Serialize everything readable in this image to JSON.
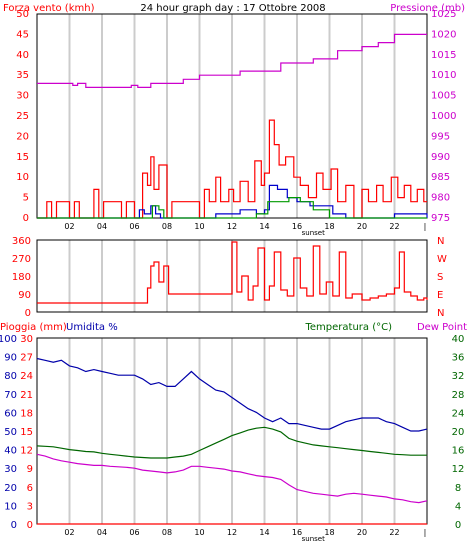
{
  "colors": {
    "wind": "#ff0000",
    "pressure": "#cc00cc",
    "direction": "#ff0000",
    "rain": "#ff0000",
    "humidity": "#0000aa",
    "temperature": "#006600",
    "dewpoint": "#cc00cc",
    "windavg": "#0000cc",
    "windgreen": "#009900",
    "grid": "#cccccc",
    "axis": "#000000"
  },
  "chart_data": [
    {
      "type": "line",
      "title": "24 hour graph day : 17 Ottobre 2008",
      "left_label": "Forza vento (kmh)",
      "right_label": "Pressione (mb)",
      "left_ticks": [
        "0",
        "5",
        "10",
        "15",
        "20",
        "25",
        "30",
        "35",
        "40",
        "45",
        "50"
      ],
      "right_ticks": [
        "975",
        "980",
        "985",
        "990",
        "995",
        "1000",
        "1005",
        "1010",
        "1015",
        "1020",
        "1025"
      ],
      "x_ticks": [
        "02",
        "04",
        "06",
        "08",
        "10",
        "12",
        "14",
        "16",
        "18",
        "20",
        "22"
      ],
      "x_extra_label": "sunset",
      "ylim_left": [
        0,
        50
      ],
      "ylim_right": [
        975,
        1025
      ],
      "xlim": [
        0,
        24
      ],
      "grid": true,
      "series": [
        {
          "name": "Pressione (mb)",
          "axis": "right",
          "type": "step",
          "x": [
            0,
            2.2,
            2.5,
            3.0,
            5.8,
            6.2,
            7.0,
            9.0,
            10.0,
            12.5,
            15.0,
            17.0,
            18.5,
            20.0,
            21.0,
            22.0,
            24.0
          ],
          "y": [
            1008,
            1007.5,
            1008,
            1007,
            1007.5,
            1007,
            1008,
            1009,
            1010,
            1011,
            1013,
            1014,
            1016,
            1017,
            1018,
            1020,
            1020
          ]
        },
        {
          "name": "wind-gust",
          "axis": "left",
          "type": "step",
          "x": [
            0,
            0.3,
            0.6,
            0.9,
            1.2,
            2.0,
            2.3,
            2.6,
            3.5,
            3.8,
            4.1,
            5.2,
            5.5,
            6.0,
            6.5,
            6.8,
            7.0,
            7.2,
            7.5,
            8.0,
            8.3,
            10.0,
            10.3,
            10.6,
            11.0,
            11.3,
            11.8,
            12.1,
            12.5,
            13.0,
            13.4,
            13.8,
            14.0,
            14.3,
            14.6,
            14.9,
            15.3,
            15.8,
            16.2,
            16.7,
            17.2,
            17.6,
            18.1,
            18.5,
            19.0,
            19.5,
            20.0,
            20.4,
            20.9,
            21.3,
            21.8,
            22.2,
            22.6,
            23.0,
            23.4,
            23.8,
            24.0
          ],
          "y": [
            0,
            0,
            4,
            0,
            4,
            0,
            4,
            0,
            7,
            0,
            4,
            0,
            4,
            0,
            11,
            8,
            15,
            7,
            13,
            0,
            4,
            0,
            7,
            4,
            10,
            4,
            7,
            4,
            9,
            4,
            14,
            8,
            11,
            24,
            18,
            13,
            15,
            10,
            8,
            5,
            11,
            7,
            12,
            4,
            8,
            0,
            7,
            4,
            8,
            4,
            10,
            5,
            8,
            4,
            7,
            4,
            4
          ]
        },
        {
          "name": "wind-avg",
          "axis": "left",
          "type": "step",
          "x": [
            0,
            6.0,
            6.3,
            6.6,
            7.0,
            7.3,
            7.6,
            10.5,
            11.0,
            12.0,
            12.5,
            13.5,
            14.0,
            14.3,
            14.8,
            15.4,
            16.0,
            16.8,
            17.5,
            18.2,
            19.0,
            21.0,
            22.0,
            24.0
          ],
          "y": [
            0,
            0,
            2,
            1,
            3,
            1,
            0,
            0,
            1,
            1,
            2,
            1,
            2,
            8,
            7,
            5,
            4,
            3,
            3,
            1,
            0,
            0,
            1,
            0
          ]
        },
        {
          "name": "wind-green",
          "axis": "left",
          "type": "step",
          "x": [
            0,
            6.8,
            7.1,
            7.5,
            7.8,
            13.0,
            13.5,
            14.2,
            15.5,
            16.2,
            17.0,
            18.0,
            24.0
          ],
          "y": [
            0,
            0,
            3,
            2,
            0,
            0,
            1,
            4,
            5,
            4,
            2,
            0,
            0
          ]
        }
      ]
    },
    {
      "type": "line",
      "left_ticks": [
        "0",
        "90",
        "180",
        "270",
        "360"
      ],
      "right_ticks": [
        "N",
        "E",
        "S",
        "W",
        "N"
      ],
      "ylim": [
        0,
        360
      ],
      "xlim": [
        0,
        24
      ],
      "series": [
        {
          "name": "direction",
          "type": "step",
          "x": [
            0,
            6.5,
            6.8,
            7.0,
            7.2,
            7.5,
            7.8,
            8.1,
            8.5,
            11.8,
            12.0,
            12.3,
            12.6,
            13.0,
            13.3,
            13.6,
            14.0,
            14.3,
            14.6,
            15.0,
            15.4,
            15.8,
            16.2,
            16.6,
            17.0,
            17.4,
            17.8,
            18.2,
            18.6,
            19.0,
            19.4,
            20.0,
            20.5,
            21.0,
            21.5,
            22.0,
            22.3,
            22.6,
            23.0,
            23.4,
            23.8,
            24.0
          ],
          "y": [
            45,
            45,
            120,
            230,
            250,
            150,
            230,
            90,
            90,
            90,
            350,
            100,
            180,
            60,
            130,
            320,
            60,
            130,
            300,
            110,
            80,
            270,
            120,
            80,
            330,
            90,
            150,
            80,
            300,
            70,
            90,
            60,
            70,
            80,
            90,
            120,
            300,
            100,
            80,
            60,
            70,
            60
          ]
        }
      ]
    },
    {
      "type": "line",
      "left_label_1": "Pioggia (mm)",
      "left_label_2": "Umidita %",
      "right_label_1": "Temperatura (°C)",
      "right_label_2": "Dew Point",
      "rain_ticks": [
        "0",
        "3",
        "6",
        "9",
        "12",
        "15",
        "18",
        "21",
        "24",
        "27",
        "30"
      ],
      "humidity_ticks": [
        "0",
        "10",
        "20",
        "30",
        "40",
        "50",
        "60",
        "70",
        "80",
        "90",
        "100"
      ],
      "temp_ticks": [
        "0",
        "4",
        "8",
        "12",
        "16",
        "20",
        "24",
        "28",
        "32",
        "36",
        "40"
      ],
      "ylim_humidity": [
        0,
        100
      ],
      "ylim_temp": [
        0,
        40
      ],
      "xlim": [
        0,
        24
      ],
      "x_ticks": [
        "02",
        "04",
        "06",
        "08",
        "10",
        "12",
        "14",
        "16",
        "18",
        "20",
        "22"
      ],
      "x_extra_label": "sunset",
      "series": [
        {
          "name": "Umidita %",
          "axis": "humidity",
          "x": [
            0,
            0.5,
            1.0,
            1.5,
            2.0,
            2.5,
            3.0,
            3.5,
            4.0,
            4.5,
            5.0,
            5.5,
            6.0,
            6.5,
            7.0,
            7.5,
            8.0,
            8.5,
            9.0,
            9.5,
            10.0,
            10.5,
            11.0,
            11.5,
            12.0,
            12.5,
            13.0,
            13.5,
            14.0,
            14.5,
            15.0,
            15.5,
            16.0,
            16.5,
            17.0,
            17.5,
            18.0,
            18.5,
            19.0,
            19.5,
            20.0,
            20.5,
            21.0,
            21.5,
            22.0,
            22.5,
            23.0,
            23.5,
            24.0
          ],
          "y": [
            89,
            88,
            87,
            88,
            85,
            84,
            82,
            83,
            82,
            81,
            80,
            80,
            80,
            78,
            75,
            76,
            74,
            74,
            78,
            82,
            78,
            75,
            72,
            71,
            68,
            65,
            62,
            60,
            57,
            55,
            57,
            54,
            54,
            53,
            52,
            51,
            51,
            53,
            55,
            56,
            57,
            57,
            57,
            55,
            54,
            52,
            50,
            50,
            51
          ]
        },
        {
          "name": "Temperatura (°C)",
          "axis": "temp",
          "x": [
            0,
            0.5,
            1.0,
            1.5,
            2.0,
            2.5,
            3.0,
            3.5,
            4.0,
            4.5,
            5.0,
            5.5,
            6.0,
            6.5,
            7.0,
            7.5,
            8.0,
            8.5,
            9.0,
            9.5,
            10.0,
            10.5,
            11.0,
            11.5,
            12.0,
            12.5,
            13.0,
            13.5,
            14.0,
            14.5,
            15.0,
            15.5,
            16.0,
            16.5,
            17.0,
            17.5,
            18.0,
            18.5,
            19.0,
            19.5,
            20.0,
            20.5,
            21.0,
            21.5,
            22.0,
            22.5,
            23.0,
            23.5,
            24.0
          ],
          "y": [
            16.8,
            16.7,
            16.6,
            16.3,
            16.0,
            15.8,
            15.6,
            15.5,
            15.2,
            15.0,
            14.8,
            14.6,
            14.4,
            14.3,
            14.2,
            14.2,
            14.2,
            14.4,
            14.6,
            15.0,
            15.8,
            16.6,
            17.4,
            18.2,
            19.0,
            19.6,
            20.2,
            20.6,
            20.8,
            20.4,
            19.8,
            18.4,
            17.8,
            17.4,
            17.0,
            16.8,
            16.6,
            16.4,
            16.2,
            16.0,
            15.8,
            15.6,
            15.4,
            15.2,
            15.0,
            14.9,
            14.8,
            14.8,
            14.8
          ]
        },
        {
          "name": "Dew Point",
          "axis": "temp",
          "x": [
            0,
            0.5,
            1.0,
            1.5,
            2.0,
            2.5,
            3.0,
            3.5,
            4.0,
            4.5,
            5.0,
            5.5,
            6.0,
            6.5,
            7.0,
            7.5,
            8.0,
            8.5,
            9.0,
            9.5,
            10.0,
            10.5,
            11.0,
            11.5,
            12.0,
            12.5,
            13.0,
            13.5,
            14.0,
            14.5,
            15.0,
            15.5,
            16.0,
            16.5,
            17.0,
            17.5,
            18.0,
            18.5,
            19.0,
            19.5,
            20.0,
            20.5,
            21.0,
            21.5,
            22.0,
            22.5,
            23.0,
            23.5,
            24.0
          ],
          "y": [
            15.0,
            14.6,
            14.0,
            13.6,
            13.3,
            13.0,
            12.8,
            12.6,
            12.6,
            12.4,
            12.3,
            12.2,
            12.0,
            11.6,
            11.4,
            11.2,
            11.0,
            11.2,
            11.6,
            12.4,
            12.4,
            12.2,
            12.0,
            11.8,
            11.4,
            11.2,
            10.8,
            10.4,
            10.2,
            10.0,
            9.6,
            8.4,
            7.4,
            7.0,
            6.6,
            6.4,
            6.2,
            6.0,
            6.4,
            6.6,
            6.4,
            6.2,
            6.0,
            5.8,
            5.4,
            5.2,
            4.8,
            4.6,
            5.0
          ]
        },
        {
          "name": "Pioggia (mm)",
          "axis": "rain",
          "x": [
            0,
            24
          ],
          "y": [
            0,
            0
          ]
        }
      ]
    }
  ]
}
